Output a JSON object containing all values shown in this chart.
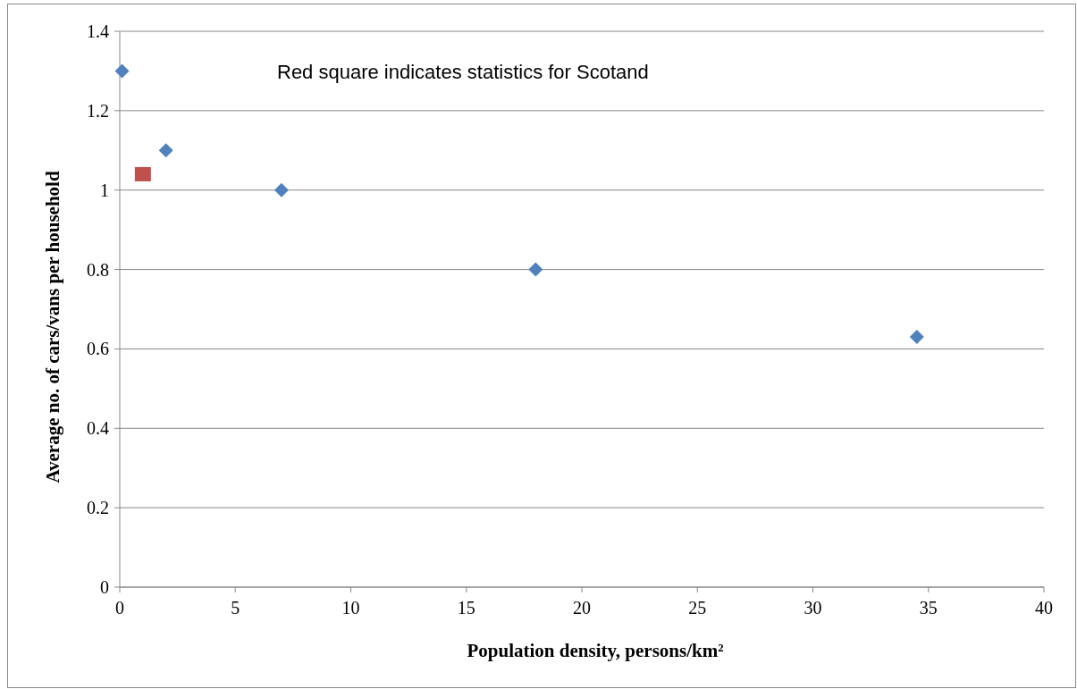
{
  "chart_data": {
    "type": "scatter",
    "xlabel": "Population density, persons/km²",
    "ylabel": "Average no. of cars/vans per household",
    "annotations": [
      "Red square indicates statistics for Scotand"
    ],
    "series": [
      {
        "color": "#4f81bd",
        "marker": "diamond",
        "x": [
          0.1,
          2,
          7,
          18,
          34.5
        ],
        "values": [
          1.3,
          1.1,
          1.0,
          0.8,
          0.63
        ]
      },
      {
        "color": "#c0504d",
        "marker": "square",
        "x": [
          1
        ],
        "values": [
          1.04
        ]
      }
    ],
    "xlim": [
      0,
      40
    ],
    "xticks": [
      0,
      5,
      10,
      15,
      20,
      25,
      30,
      35,
      40
    ],
    "ylim": [
      0,
      1.4
    ],
    "yticks": [
      0,
      0.2,
      0.4,
      0.6,
      0.8,
      1,
      1.2,
      1.4
    ],
    "grid": "y"
  }
}
